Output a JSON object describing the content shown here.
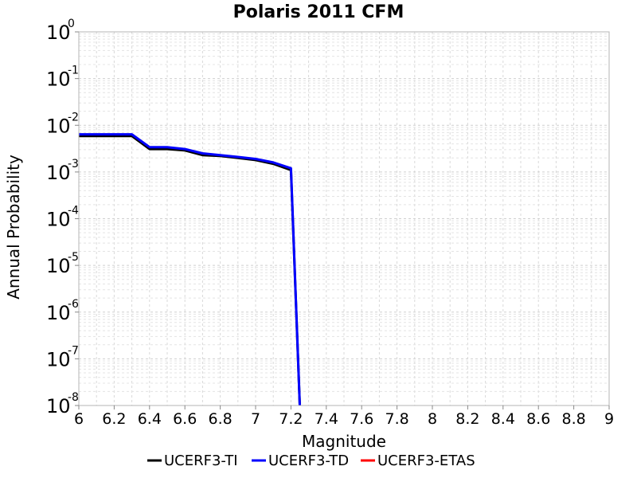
{
  "chart_data": {
    "type": "line",
    "title": "Polaris 2011 CFM",
    "xlabel": "Magnitude",
    "ylabel": "Annual Probability",
    "xlim": [
      6,
      9
    ],
    "ylim": [
      1e-08,
      1
    ],
    "y_scale": "log",
    "grid": true,
    "legend_position": "bottom",
    "x_ticks": [
      "6",
      "6.2",
      "6.4",
      "6.6",
      "6.8",
      "7",
      "7.2",
      "7.4",
      "7.6",
      "7.8",
      "8",
      "8.2",
      "8.4",
      "8.6",
      "8.8",
      "9"
    ],
    "y_tick_exponents": [
      "0",
      "-1",
      "-2",
      "-3",
      "-4",
      "-5",
      "-6",
      "-7",
      "-8"
    ],
    "y_tick_base": "10",
    "series": [
      {
        "name": "UCERF3-TI",
        "color": "#000000",
        "x": [
          6.0,
          6.1,
          6.2,
          6.3,
          6.4,
          6.5,
          6.6,
          6.7,
          6.8,
          6.9,
          7.0,
          7.1,
          7.2,
          7.25
        ],
        "y": [
          0.0059,
          0.0059,
          0.0059,
          0.0059,
          0.0031,
          0.0031,
          0.0029,
          0.0023,
          0.0022,
          0.002,
          0.0018,
          0.0015,
          0.0011,
          1e-08
        ]
      },
      {
        "name": "UCERF3-TD",
        "color": "#0000ff",
        "x": [
          6.0,
          6.1,
          6.2,
          6.3,
          6.4,
          6.5,
          6.6,
          6.7,
          6.8,
          6.9,
          7.0,
          7.1,
          7.2,
          7.25
        ],
        "y": [
          0.0064,
          0.0064,
          0.0064,
          0.0064,
          0.0034,
          0.0034,
          0.0031,
          0.0025,
          0.0023,
          0.0021,
          0.0019,
          0.0016,
          0.0012,
          1e-08
        ]
      },
      {
        "name": "UCERF3-ETAS",
        "color": "#ff0000",
        "x": [],
        "y": []
      }
    ]
  }
}
